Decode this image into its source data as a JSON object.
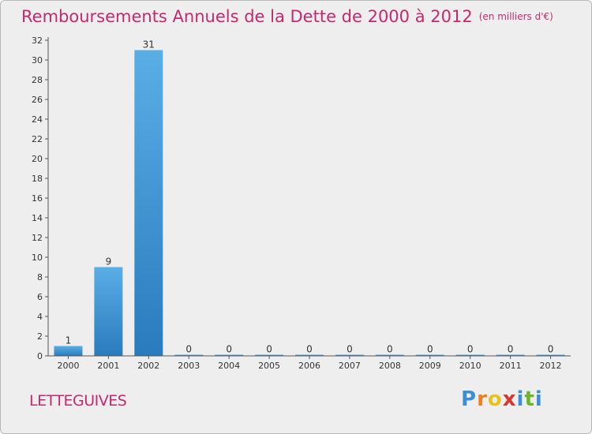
{
  "header": {
    "title": "Remboursements Annuels de la Dette de 2000 à 2012",
    "unit": "(en milliers d'€)"
  },
  "commune": "LETTEGUIVES",
  "brand": {
    "name": "Proxiti",
    "letters": [
      "P",
      "r",
      "o",
      "x",
      "i",
      "t",
      "i"
    ],
    "colors": [
      "#3c8fd6",
      "#f07d1e",
      "#e8c21c",
      "#d8362e",
      "#3c8fd6",
      "#6cb42c",
      "#3c8fd6"
    ]
  },
  "colors": {
    "title": "#c8286e",
    "bar_light": "#5aaee6",
    "bar_dark": "#2a7bbd",
    "axis": "#555555",
    "background": "#eeeeee"
  },
  "chart_data": {
    "type": "bar",
    "title": "Remboursements Annuels de la Dette de 2000 à 2012",
    "ylabel": "en milliers d'€",
    "xlabel": "",
    "categories": [
      "2000",
      "2001",
      "2002",
      "2003",
      "2004",
      "2005",
      "2006",
      "2007",
      "2008",
      "2009",
      "2010",
      "2011",
      "2012"
    ],
    "values": [
      1,
      9,
      31,
      0,
      0,
      0,
      0,
      0,
      0,
      0,
      0,
      0,
      0
    ],
    "ylim": [
      0,
      32
    ],
    "yticks": [
      0,
      2,
      4,
      6,
      8,
      10,
      12,
      14,
      16,
      18,
      20,
      22,
      24,
      26,
      28,
      30,
      32
    ],
    "grid": false
  }
}
